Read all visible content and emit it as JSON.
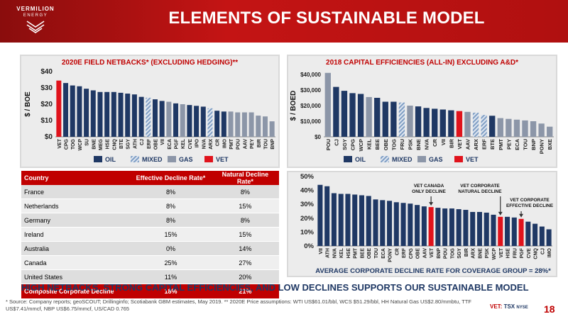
{
  "header": {
    "logo_line1": "VERMILION",
    "logo_line2": "ENERGY",
    "title": "ELEMENTS OF SUSTAINABLE MODEL"
  },
  "colors": {
    "vet": "#e0131c",
    "oil": "#1f3864",
    "mixed": "#7f9ec4",
    "gas": "#8c96a8",
    "accent": "#c00000"
  },
  "legend": {
    "oil": "OIL",
    "mixed": "MIXED",
    "gas": "GAS",
    "vet": "VET"
  },
  "chart_data": [
    {
      "type": "bar",
      "title": "2020E FIELD NETBACKS* (EXCLUDING HEDGING)**",
      "ylabel": "$ / BOE",
      "ylim": [
        0,
        40
      ],
      "yticks": [
        "$0",
        "$10",
        "$20",
        "$30",
        "$40"
      ],
      "categories": [
        "VET",
        "CPG",
        "TOG",
        "WCP",
        "SU",
        "BNE",
        "MEG",
        "HSE",
        "CNQ",
        "BTE",
        "SGY",
        "ATH",
        "CJ",
        "ERF",
        "OBE",
        "VII",
        "ECA",
        "PGF",
        "KEL",
        "CVE",
        "IPO",
        "NVA",
        "ARX",
        "CR",
        "IMO",
        "PMT",
        "POU",
        "AAV",
        "PEY",
        "BIR",
        "TOU",
        "BNP"
      ],
      "values": [
        34.5,
        33,
        31.5,
        31,
        29.5,
        28.5,
        27.5,
        27.5,
        27.5,
        27,
        26.5,
        26,
        24.5,
        24,
        23,
        22,
        21.5,
        20.5,
        20,
        19.5,
        19,
        18.5,
        17.5,
        16,
        15.5,
        15.5,
        15,
        15,
        15,
        13,
        12.5,
        9.5
      ],
      "kinds": [
        "vet",
        "oil",
        "oil",
        "oil",
        "oil",
        "oil",
        "oil",
        "oil",
        "oil",
        "oil",
        "oil",
        "oil",
        "oil",
        "mixed",
        "oil",
        "oil",
        "gas",
        "oil",
        "gas",
        "oil",
        "oil",
        "oil",
        "mixed",
        "oil",
        "oil",
        "gas",
        "gas",
        "gas",
        "gas",
        "gas",
        "gas",
        "gas"
      ]
    },
    {
      "type": "bar",
      "title": "2018 CAPITAL EFFICIENCIES (ALL-IN) EXCLUDING A&D*",
      "ylabel": "$ / BOED",
      "ylim": [
        0,
        40000
      ],
      "yticks": [
        "$0",
        "$10,000",
        "$20,000",
        "$30,000",
        "$40,000"
      ],
      "categories": [
        "POU",
        "CJ",
        "SGY",
        "CPG",
        "WCP",
        "KEL",
        "BEE",
        "OBE",
        "TOG",
        "FRU",
        "PSK",
        "BNE",
        "NVA",
        "CR",
        "VII",
        "BIR",
        "VET",
        "AAV",
        "ARX",
        "ERF",
        "BTE",
        "PMT",
        "PEY",
        "ECA",
        "TOU",
        "BNP",
        "PONY",
        "BXE"
      ],
      "values": [
        41000,
        32000,
        29500,
        28000,
        27500,
        25500,
        25000,
        22500,
        22500,
        22000,
        20000,
        19500,
        18500,
        18000,
        17500,
        17000,
        16500,
        16000,
        15500,
        14000,
        13500,
        12000,
        11500,
        11000,
        10500,
        10000,
        8500,
        6500
      ],
      "kinds": [
        "gas",
        "oil",
        "oil",
        "oil",
        "oil",
        "gas",
        "oil",
        "oil",
        "oil",
        "mixed",
        "gas",
        "oil",
        "oil",
        "oil",
        "oil",
        "oil",
        "vet",
        "gas",
        "mixed",
        "mixed",
        "oil",
        "gas",
        "gas",
        "gas",
        "gas",
        "gas",
        "gas",
        "gas"
      ]
    },
    {
      "type": "bar",
      "title": "AVERAGE CORPORATE DECLINE RATE FOR COVERAGE GROUP = 28%*",
      "ylim": [
        0,
        50
      ],
      "yticks": [
        "0%",
        "10%",
        "20%",
        "30%",
        "40%",
        "50%"
      ],
      "categories": [
        "VII",
        "ATH",
        "NVA",
        "KEL",
        "HSE",
        "PMT",
        "BEE",
        "OBE",
        "TOU",
        "ECA",
        "PONY",
        "CR",
        "ERF",
        "CPG",
        "OBE",
        "AAV",
        "VET",
        "BNP",
        "POU",
        "TOG",
        "SGY",
        "BIR",
        "ARX",
        "BNE",
        "PSK",
        "WCP",
        "VET",
        "HSE",
        "FRU",
        "PGF",
        "CVE",
        "CNQ",
        "CJ",
        "IMO"
      ],
      "values": [
        44,
        43,
        38,
        37.5,
        37.5,
        37,
        36.5,
        36,
        33.5,
        33,
        32.5,
        31.5,
        31,
        30.5,
        29.5,
        28.5,
        28,
        27.5,
        27,
        27,
        26.5,
        26,
        24.5,
        24.5,
        24,
        22.5,
        21,
        21,
        20.5,
        19.5,
        17.5,
        16,
        14,
        12
      ],
      "kinds": [
        "bar",
        "bar",
        "bar",
        "bar",
        "bar",
        "bar",
        "bar",
        "bar",
        "bar",
        "bar",
        "bar",
        "bar",
        "bar",
        "bar",
        "bar",
        "bar",
        "vet",
        "bar",
        "bar",
        "bar",
        "bar",
        "bar",
        "bar",
        "bar",
        "bar",
        "bar",
        "vet",
        "bar",
        "bar",
        "vet",
        "bar",
        "bar",
        "bar",
        "bar"
      ],
      "annotations": [
        "VET CANADA ONLY DECLINE",
        "VET CORPORATE NATURAL DECLINE",
        "VET CORPORATE EFFECTIVE DECLINE"
      ]
    }
  ],
  "table": {
    "headers": [
      "Country",
      "Effective Decline Rate*",
      "Natural Decline Rate*"
    ],
    "rows": [
      [
        "France",
        "8%",
        "8%"
      ],
      [
        "Netherlands",
        "8%",
        "15%"
      ],
      [
        "Germany",
        "8%",
        "8%"
      ],
      [
        "Ireland",
        "15%",
        "15%"
      ],
      [
        "Australia",
        "0%",
        "14%"
      ],
      [
        "Canada",
        "25%",
        "27%"
      ],
      [
        "United States",
        "11%",
        "20%"
      ]
    ],
    "total": [
      "Composite Corporate Decline",
      "18%",
      "21%"
    ]
  },
  "bottom_message": "HIGH NETBACKS, STRONG CAPITAL EFFICIENCIES, AND LOW DECLINES SUPPORTS OUR SUSTAINABLE MODEL",
  "footnote": "* Source: Company reports; geoSCOUT; Drillinginfo; Scotiabank GBM estimates, May 2019. ** 2020E Price assumptions: WTI US$61.01/bbl, WCS $51.29/bbl, HH Natural Gas US$2.80/mmbtu, TTF US$7.41/mmcf, NBP US$6.75/mmcf, US/CAD 0.765",
  "ticker": {
    "vet": "VET:",
    "tsx": "TSX",
    "nyse": "NYSE"
  },
  "page_number": "18"
}
